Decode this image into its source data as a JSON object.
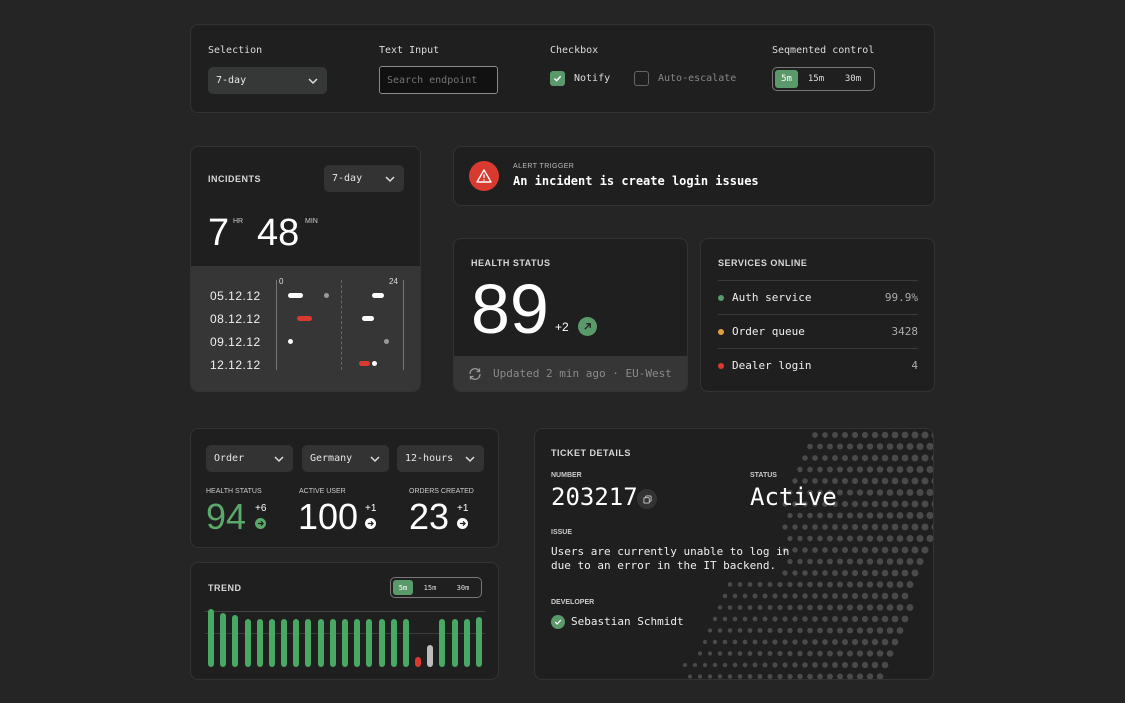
{
  "controls": {
    "selection_title": "Selection",
    "selection_value": "7-day",
    "text_input_title": "Text Input",
    "text_input_placeholder": "Search endpoint",
    "checkbox_title": "Checkbox",
    "checkbox_notify": "Notify",
    "checkbox_notify_checked": true,
    "checkbox_escalate": "Auto-escalate",
    "checkbox_escalate_checked": false,
    "segmented_title": "Seqmented control",
    "segmented_options": [
      "5m",
      "15m",
      "30m"
    ],
    "segmented_selected": "5m"
  },
  "incidents": {
    "title": "INCIDENTS",
    "period": "7-day",
    "hours": "7",
    "hours_unit": "HR",
    "minutes": "48",
    "minutes_unit": "MIN",
    "axis_start": "0",
    "axis_end": "24",
    "dates": [
      "05.12.12",
      "08.12.12",
      "09.12.12",
      "12.12.12"
    ]
  },
  "alert": {
    "label": "ALERT TRIGGER",
    "message": "An incident is create login issues",
    "icon": "warning-triangle-icon",
    "color": "#d93a2f"
  },
  "health": {
    "title": "HEALTH STATUS",
    "value": "89",
    "delta": "+2",
    "footer": "Updated 2 min ago · EU-West"
  },
  "services": {
    "title": "SERVICES ONLINE",
    "items": [
      {
        "name": "Auth service",
        "value": "99.9%",
        "color": "#5a9a6a"
      },
      {
        "name": "Order queue",
        "value": "3428",
        "color": "#e0a040"
      },
      {
        "name": "Dealer login",
        "value": "4",
        "color": "#d93a2f"
      }
    ]
  },
  "filters": {
    "options": [
      "Order",
      "Germany",
      "12-hours"
    ]
  },
  "metrics": [
    {
      "label": "HEALTH STATUS",
      "value": "94",
      "delta": "+6",
      "color": "#5aa86a"
    },
    {
      "label": "ACTIVE USER",
      "value": "100",
      "delta": "+1",
      "color": "#ffffff"
    },
    {
      "label": "ORDERS CREATED",
      "value": "23",
      "delta": "+1",
      "color": "#ffffff"
    }
  ],
  "trend": {
    "title": "TREND",
    "segmented_options": [
      "5m",
      "15m",
      "30m"
    ],
    "segmented_selected": "5m"
  },
  "chart_data": {
    "type": "bar",
    "values": [
      58,
      54,
      52,
      48,
      48,
      48,
      48,
      48,
      48,
      48,
      48,
      48,
      48,
      48,
      48,
      48,
      48,
      10,
      22,
      48,
      48,
      48,
      50
    ],
    "colors": [
      "green",
      "green",
      "green",
      "green",
      "green",
      "green",
      "green",
      "green",
      "green",
      "green",
      "green",
      "green",
      "green",
      "green",
      "green",
      "green",
      "green",
      "red",
      "gray",
      "green",
      "green",
      "green",
      "green"
    ]
  },
  "ticket": {
    "title": "TICKET DETAILS",
    "number_label": "NUMBER",
    "number": "203217",
    "status_label": "STATUS",
    "status": "Active",
    "issue_label": "ISSUE",
    "issue_line1": "Users are currently unable to log in",
    "issue_line2": "due to an error in the IT backend.",
    "developer_label": "DEVELOPER",
    "developer": "Sebastian Schmidt"
  }
}
